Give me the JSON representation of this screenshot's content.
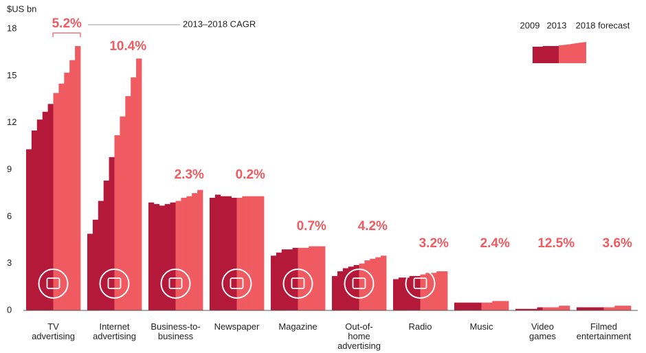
{
  "chart_data": {
    "type": "stepbar",
    "y_axis_label": "$US bn",
    "annotation": "2013–2018 CAGR",
    "legend": [
      "2009",
      "2013",
      "2018 forecast"
    ],
    "colors": {
      "actual": "#b5193a",
      "forecast": "#ef5b61"
    },
    "ylim": [
      0,
      18
    ],
    "yticks": [
      0,
      3,
      6,
      9,
      12,
      15,
      18
    ],
    "categories": [
      [
        "TV",
        "advertising"
      ],
      [
        "Internet",
        "advertising"
      ],
      [
        "Business-to-",
        "business"
      ],
      [
        "Newspaper"
      ],
      [
        "Magazine"
      ],
      [
        "Out-of-",
        "home",
        "advertising"
      ],
      [
        "Radio"
      ],
      [
        "Music"
      ],
      [
        "Video",
        "games"
      ],
      [
        "Filmed",
        "entertainment"
      ]
    ],
    "actual": [
      [
        10.3,
        11.5,
        12.2,
        12.7,
        13.2
      ],
      [
        4.9,
        5.8,
        7.0,
        8.3,
        9.8
      ],
      [
        6.9,
        6.8,
        6.7,
        6.8,
        6.9
      ],
      [
        7.2,
        7.4,
        7.3,
        7.3,
        7.2
      ],
      [
        3.5,
        3.7,
        3.9,
        3.9,
        4.0
      ],
      [
        2.2,
        2.5,
        2.7,
        2.8,
        2.9
      ],
      [
        2.0,
        2.1,
        2.1,
        2.2,
        2.2
      ],
      [
        0.5,
        0.5,
        0.5,
        0.5,
        0.5
      ],
      [
        0.1,
        0.1,
        0.1,
        0.1,
        0.2
      ],
      [
        0.2,
        0.2,
        0.2,
        0.2,
        0.2
      ]
    ],
    "forecast": [
      [
        13.9,
        14.5,
        15.2,
        16.0,
        16.9
      ],
      [
        11.2,
        12.4,
        13.7,
        14.9,
        16.1
      ],
      [
        7.0,
        7.2,
        7.3,
        7.5,
        7.7
      ],
      [
        7.2,
        7.3,
        7.3,
        7.3,
        7.3
      ],
      [
        4.0,
        4.0,
        4.1,
        4.1,
        4.1
      ],
      [
        3.0,
        3.2,
        3.3,
        3.4,
        3.5
      ],
      [
        2.3,
        2.4,
        2.4,
        2.5,
        2.5
      ],
      [
        0.5,
        0.5,
        0.6,
        0.6,
        0.6
      ],
      [
        0.2,
        0.2,
        0.2,
        0.3,
        0.3
      ],
      [
        0.2,
        0.2,
        0.3,
        0.3,
        0.3
      ]
    ],
    "cagr": [
      5.2,
      10.4,
      2.3,
      0.2,
      0.7,
      4.2,
      3.2,
      2.4,
      12.5,
      3.6
    ],
    "cagr_labels": [
      "5.2%",
      "10.4%",
      "2.3%",
      "0.2%",
      "0.7%",
      "4.2%",
      "3.2%",
      "2.4%",
      "12.5%",
      "3.6%"
    ]
  }
}
